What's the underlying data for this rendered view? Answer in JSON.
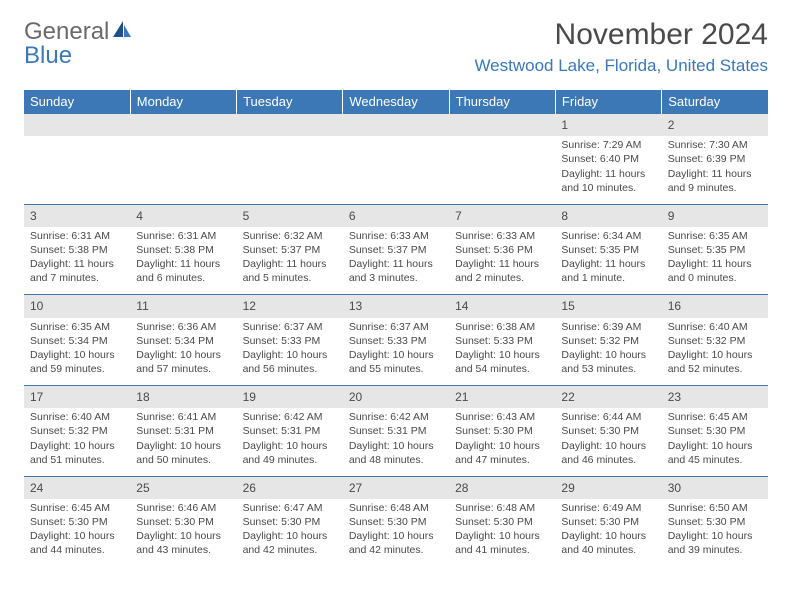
{
  "logo": {
    "text_general": "General",
    "text_blue": "Blue"
  },
  "title": "November 2024",
  "location": "Westwood Lake, Florida, United States",
  "colors": {
    "header_blue": "#3b78b5",
    "daynum_bg": "#e6e6e6",
    "text": "#4a4a4a",
    "location": "#3b78b5",
    "white": "#ffffff"
  },
  "day_headers": [
    "Sunday",
    "Monday",
    "Tuesday",
    "Wednesday",
    "Thursday",
    "Friday",
    "Saturday"
  ],
  "weeks": [
    {
      "nums": [
        "",
        "",
        "",
        "",
        "",
        "1",
        "2"
      ],
      "cells": [
        "",
        "",
        "",
        "",
        "",
        "Sunrise: 7:29 AM\nSunset: 6:40 PM\nDaylight: 11 hours and 10 minutes.",
        "Sunrise: 7:30 AM\nSunset: 6:39 PM\nDaylight: 11 hours and 9 minutes."
      ]
    },
    {
      "nums": [
        "3",
        "4",
        "5",
        "6",
        "7",
        "8",
        "9"
      ],
      "cells": [
        "Sunrise: 6:31 AM\nSunset: 5:38 PM\nDaylight: 11 hours and 7 minutes.",
        "Sunrise: 6:31 AM\nSunset: 5:38 PM\nDaylight: 11 hours and 6 minutes.",
        "Sunrise: 6:32 AM\nSunset: 5:37 PM\nDaylight: 11 hours and 5 minutes.",
        "Sunrise: 6:33 AM\nSunset: 5:37 PM\nDaylight: 11 hours and 3 minutes.",
        "Sunrise: 6:33 AM\nSunset: 5:36 PM\nDaylight: 11 hours and 2 minutes.",
        "Sunrise: 6:34 AM\nSunset: 5:35 PM\nDaylight: 11 hours and 1 minute.",
        "Sunrise: 6:35 AM\nSunset: 5:35 PM\nDaylight: 11 hours and 0 minutes."
      ]
    },
    {
      "nums": [
        "10",
        "11",
        "12",
        "13",
        "14",
        "15",
        "16"
      ],
      "cells": [
        "Sunrise: 6:35 AM\nSunset: 5:34 PM\nDaylight: 10 hours and 59 minutes.",
        "Sunrise: 6:36 AM\nSunset: 5:34 PM\nDaylight: 10 hours and 57 minutes.",
        "Sunrise: 6:37 AM\nSunset: 5:33 PM\nDaylight: 10 hours and 56 minutes.",
        "Sunrise: 6:37 AM\nSunset: 5:33 PM\nDaylight: 10 hours and 55 minutes.",
        "Sunrise: 6:38 AM\nSunset: 5:33 PM\nDaylight: 10 hours and 54 minutes.",
        "Sunrise: 6:39 AM\nSunset: 5:32 PM\nDaylight: 10 hours and 53 minutes.",
        "Sunrise: 6:40 AM\nSunset: 5:32 PM\nDaylight: 10 hours and 52 minutes."
      ]
    },
    {
      "nums": [
        "17",
        "18",
        "19",
        "20",
        "21",
        "22",
        "23"
      ],
      "cells": [
        "Sunrise: 6:40 AM\nSunset: 5:32 PM\nDaylight: 10 hours and 51 minutes.",
        "Sunrise: 6:41 AM\nSunset: 5:31 PM\nDaylight: 10 hours and 50 minutes.",
        "Sunrise: 6:42 AM\nSunset: 5:31 PM\nDaylight: 10 hours and 49 minutes.",
        "Sunrise: 6:42 AM\nSunset: 5:31 PM\nDaylight: 10 hours and 48 minutes.",
        "Sunrise: 6:43 AM\nSunset: 5:30 PM\nDaylight: 10 hours and 47 minutes.",
        "Sunrise: 6:44 AM\nSunset: 5:30 PM\nDaylight: 10 hours and 46 minutes.",
        "Sunrise: 6:45 AM\nSunset: 5:30 PM\nDaylight: 10 hours and 45 minutes."
      ]
    },
    {
      "nums": [
        "24",
        "25",
        "26",
        "27",
        "28",
        "29",
        "30"
      ],
      "cells": [
        "Sunrise: 6:45 AM\nSunset: 5:30 PM\nDaylight: 10 hours and 44 minutes.",
        "Sunrise: 6:46 AM\nSunset: 5:30 PM\nDaylight: 10 hours and 43 minutes.",
        "Sunrise: 6:47 AM\nSunset: 5:30 PM\nDaylight: 10 hours and 42 minutes.",
        "Sunrise: 6:48 AM\nSunset: 5:30 PM\nDaylight: 10 hours and 42 minutes.",
        "Sunrise: 6:48 AM\nSunset: 5:30 PM\nDaylight: 10 hours and 41 minutes.",
        "Sunrise: 6:49 AM\nSunset: 5:30 PM\nDaylight: 10 hours and 40 minutes.",
        "Sunrise: 6:50 AM\nSunset: 5:30 PM\nDaylight: 10 hours and 39 minutes."
      ]
    }
  ]
}
